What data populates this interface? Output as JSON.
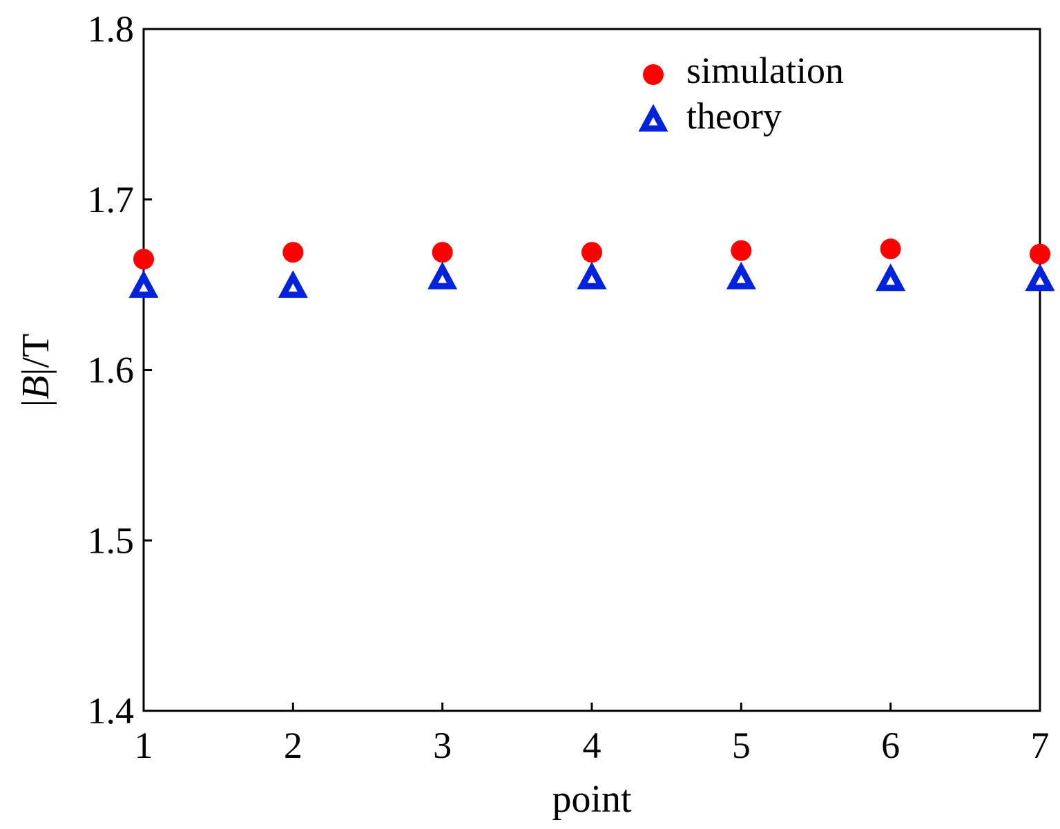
{
  "chart_data": {
    "type": "scatter",
    "title": "",
    "xlabel": "point",
    "ylabel_prefix": "|",
    "ylabel_var": "B",
    "ylabel_suffix": "|/T",
    "xlim": [
      1,
      7
    ],
    "ylim": [
      1.4,
      1.8
    ],
    "xticks": [
      1,
      2,
      3,
      4,
      5,
      6,
      7
    ],
    "yticks": [
      1.4,
      1.5,
      1.6,
      1.7,
      1.8
    ],
    "xtick_labels": [
      "1",
      "2",
      "3",
      "4",
      "5",
      "6",
      "7"
    ],
    "ytick_labels": [
      "1.4",
      "1.5",
      "1.6",
      "1.7",
      "1.8"
    ],
    "grid": false,
    "legend_position": "top-right",
    "series": [
      {
        "name": "simulation",
        "marker": "circle",
        "color": "#ff0000",
        "x": [
          1,
          2,
          3,
          4,
          5,
          6,
          7
        ],
        "y": [
          1.665,
          1.669,
          1.669,
          1.669,
          1.67,
          1.671,
          1.668
        ]
      },
      {
        "name": "theory",
        "marker": "triangle",
        "color": "#0022dd",
        "x": [
          1,
          2,
          3,
          4,
          5,
          6,
          7
        ],
        "y": [
          1.649,
          1.649,
          1.654,
          1.654,
          1.654,
          1.653,
          1.653
        ]
      }
    ]
  }
}
